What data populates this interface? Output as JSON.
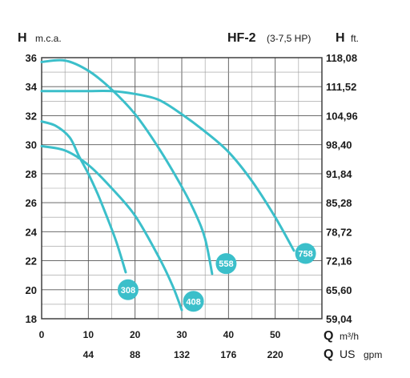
{
  "header": {
    "left_symbol": "H",
    "left_unit": "m.c.a.",
    "model": "HF-2",
    "model_range": "(3-7,5 HP)",
    "right_symbol": "H",
    "right_unit": "ft."
  },
  "axes": {
    "q_symbol": "Q",
    "q_unit": "m³/h",
    "q2_symbol": "Q",
    "q2_unit_a": "US",
    "q2_unit_b": "gpm"
  },
  "chart_data": {
    "type": "line",
    "title": "HF-2 (3-7,5 HP)",
    "xlabel": "Q m³/h",
    "xlabel_secondary": "Q US gpm",
    "ylabel": "H m.c.a.",
    "ylabel_right": "H ft.",
    "xlim": [
      0,
      60
    ],
    "ylim": [
      18,
      36
    ],
    "x_ticks": [
      0,
      10,
      20,
      30,
      40,
      50
    ],
    "x_tick_labels": [
      "0",
      "10",
      "20",
      "30",
      "40",
      "50"
    ],
    "x2_ticks": [
      10,
      20,
      30,
      40,
      50
    ],
    "x2_tick_labels": [
      "44",
      "88",
      "132",
      "176",
      "220"
    ],
    "y_ticks": [
      18,
      20,
      22,
      24,
      26,
      28,
      30,
      32,
      34,
      36
    ],
    "y_tick_labels": [
      "18",
      "20",
      "22",
      "24",
      "26",
      "28",
      "30",
      "32",
      "34",
      "36"
    ],
    "y2_tick_labels": [
      "59,04",
      "65,60",
      "72,16",
      "78,72",
      "85,28",
      "91,84",
      "98,40",
      "104,96",
      "111,52",
      "118,08"
    ],
    "grid": true,
    "line_color": "#3bbfca",
    "badge_color": "#3bbfca",
    "series": [
      {
        "name": "308",
        "x": [
          0,
          3,
          6,
          8,
          10,
          12,
          14,
          16,
          18
        ],
        "y": [
          31.6,
          31.3,
          30.5,
          29.2,
          28.0,
          26.6,
          25.0,
          23.3,
          21.2
        ]
      },
      {
        "name": "408",
        "x": [
          0,
          5,
          10,
          15,
          20,
          25,
          28,
          30
        ],
        "y": [
          29.9,
          29.6,
          28.6,
          27.0,
          25.1,
          22.3,
          20.3,
          18.6
        ]
      },
      {
        "name": "558",
        "x": [
          0,
          5,
          10,
          15,
          20,
          25,
          30,
          33,
          35,
          36.5
        ],
        "y": [
          35.7,
          35.8,
          35.1,
          33.8,
          32.1,
          29.8,
          27.1,
          25.2,
          23.5,
          21.1
        ]
      },
      {
        "name": "758",
        "x": [
          0,
          5,
          10,
          15,
          20,
          25,
          30,
          35,
          40,
          45,
          50,
          54
        ],
        "y": [
          33.7,
          33.7,
          33.7,
          33.7,
          33.5,
          33.1,
          32.1,
          30.9,
          29.5,
          27.5,
          25.0,
          22.7
        ]
      }
    ],
    "badges": [
      {
        "label": "308",
        "x": 18.5,
        "y": 20.0
      },
      {
        "label": "408",
        "x": 32.5,
        "y": 19.2
      },
      {
        "label": "558",
        "x": 39.5,
        "y": 21.8
      },
      {
        "label": "758",
        "x": 56.5,
        "y": 22.5
      }
    ]
  }
}
